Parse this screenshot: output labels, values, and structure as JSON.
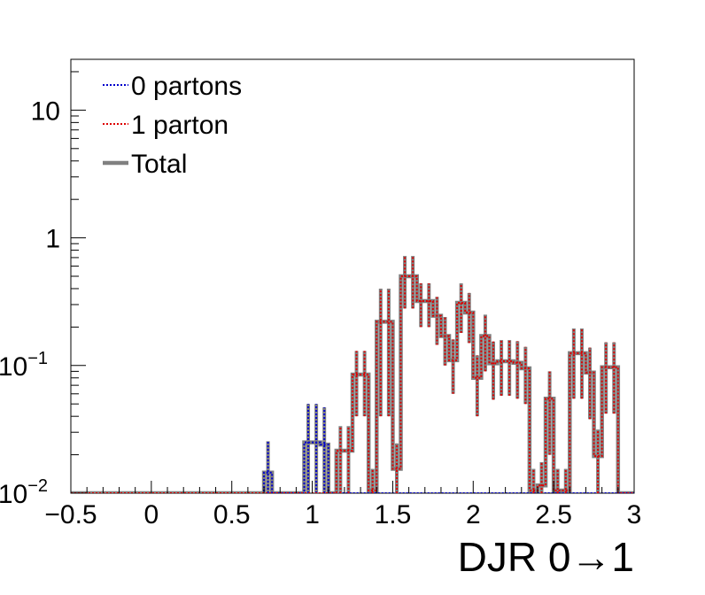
{
  "chart_data": {
    "type": "step-histogram",
    "xlabel": "DJR 0→1",
    "ylabel": "",
    "xlim": [
      -0.5,
      3.0
    ],
    "ylim": [
      0.01,
      25
    ],
    "yscale": "log",
    "bin_width": 0.05,
    "x_ticks": [
      {
        "value": -0.5,
        "label": "−0.5"
      },
      {
        "value": 0,
        "label": "0"
      },
      {
        "value": 0.5,
        "label": "0.5"
      },
      {
        "value": 1,
        "label": "1"
      },
      {
        "value": 1.5,
        "label": "1.5"
      },
      {
        "value": 2,
        "label": "2"
      },
      {
        "value": 2.5,
        "label": "2.5"
      },
      {
        "value": 3,
        "label": "3"
      }
    ],
    "y_ticks": [
      {
        "value": 0.01,
        "base": "10",
        "exp": "−2"
      },
      {
        "value": 0.1,
        "base": "10",
        "exp": "−1"
      },
      {
        "value": 1,
        "base": "1",
        "exp": ""
      },
      {
        "value": 10,
        "base": "10",
        "exp": ""
      }
    ],
    "legend_position": "top-left",
    "legend": [
      {
        "label": "0 partons",
        "color": "#0000cc",
        "style": "dotted"
      },
      {
        "label": "1 parton",
        "color": "#dd0000",
        "style": "dotted"
      },
      {
        "label": "Total",
        "color": "#808080",
        "style": "solid"
      }
    ],
    "series": [
      {
        "name": "0 partons",
        "color": "#0000cc",
        "bins": [
          {
            "x": 0.7,
            "y": 0.0145,
            "err": 0.011
          },
          {
            "x": 0.95,
            "y": 0.025,
            "err": 0.025
          },
          {
            "x": 1.0,
            "y": 0.025,
            "err": 0.025
          },
          {
            "x": 1.05,
            "y": 0.024,
            "err": 0.023
          }
        ]
      },
      {
        "name": "1 parton",
        "color": "#dd0000",
        "bins": [
          {
            "x": 1.15,
            "y": 0.0215,
            "err": 0.012
          },
          {
            "x": 1.2,
            "y": 0.0215,
            "err": 0.012
          },
          {
            "x": 1.25,
            "y": 0.085,
            "err": 0.045
          },
          {
            "x": 1.3,
            "y": 0.085,
            "err": 0.045
          },
          {
            "x": 1.35,
            "y": 0.0105,
            "err": 0.005
          },
          {
            "x": 1.4,
            "y": 0.22,
            "err": 0.18
          },
          {
            "x": 1.45,
            "y": 0.22,
            "err": 0.18
          },
          {
            "x": 1.5,
            "y": 0.0155,
            "err": 0.009
          },
          {
            "x": 1.55,
            "y": 0.5,
            "err": 0.22
          },
          {
            "x": 1.6,
            "y": 0.5,
            "err": 0.22
          },
          {
            "x": 1.65,
            "y": 0.32,
            "err": 0.12
          },
          {
            "x": 1.7,
            "y": 0.32,
            "err": 0.12
          },
          {
            "x": 1.75,
            "y": 0.245,
            "err": 0.1
          },
          {
            "x": 1.8,
            "y": 0.17,
            "err": 0.07
          },
          {
            "x": 1.85,
            "y": 0.11,
            "err": 0.05
          },
          {
            "x": 1.9,
            "y": 0.31,
            "err": 0.13
          },
          {
            "x": 1.95,
            "y": 0.26,
            "err": 0.11
          },
          {
            "x": 2.0,
            "y": 0.08,
            "err": 0.04
          },
          {
            "x": 2.05,
            "y": 0.17,
            "err": 0.08
          },
          {
            "x": 2.1,
            "y": 0.104,
            "err": 0.05
          },
          {
            "x": 2.15,
            "y": 0.108,
            "err": 0.05
          },
          {
            "x": 2.2,
            "y": 0.108,
            "err": 0.05
          },
          {
            "x": 2.25,
            "y": 0.105,
            "err": 0.05
          },
          {
            "x": 2.3,
            "y": 0.095,
            "err": 0.045
          },
          {
            "x": 2.35,
            "y": 0.0105,
            "err": 0.005
          },
          {
            "x": 2.4,
            "y": 0.0115,
            "err": 0.006
          },
          {
            "x": 2.45,
            "y": 0.055,
            "err": 0.035
          },
          {
            "x": 2.5,
            "y": 0.0105,
            "err": 0.005
          },
          {
            "x": 2.55,
            "y": 0.0105,
            "err": 0.005
          },
          {
            "x": 2.6,
            "y": 0.125,
            "err": 0.07
          },
          {
            "x": 2.65,
            "y": 0.125,
            "err": 0.07
          },
          {
            "x": 2.7,
            "y": 0.088,
            "err": 0.05
          },
          {
            "x": 2.75,
            "y": 0.0195,
            "err": 0.012
          },
          {
            "x": 2.8,
            "y": 0.097,
            "err": 0.055
          },
          {
            "x": 2.85,
            "y": 0.097,
            "err": 0.055
          }
        ]
      }
    ]
  }
}
